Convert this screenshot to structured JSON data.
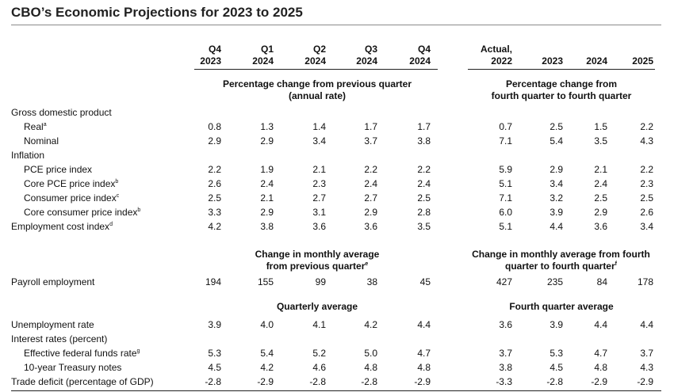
{
  "title": "CBO’s Economic Projections for 2023 to 2025",
  "columns": [
    {
      "line1": "Q4",
      "line2": "2023"
    },
    {
      "line1": "Q1",
      "line2": "2024"
    },
    {
      "line1": "Q2",
      "line2": "2024"
    },
    {
      "line1": "Q3",
      "line2": "2024"
    },
    {
      "line1": "Q4",
      "line2": "2024"
    },
    {
      "line1": "Actual,",
      "line2": "2022"
    },
    {
      "line1": "",
      "line2": "2023"
    },
    {
      "line1": "",
      "line2": "2024"
    },
    {
      "line1": "",
      "line2": "2025"
    }
  ],
  "sections": {
    "quarterly_pct_l1": "Percentage change from previous quarter",
    "quarterly_pct_l2": "(annual rate)",
    "annual_pct_l1": "Percentage change from",
    "annual_pct_l2": "fourth quarter to fourth quarter",
    "quarterly_avg_change_l1": "Change in monthly average",
    "quarterly_avg_change_l2": "from previous quarter",
    "quarterly_avg_change_note": "e",
    "annual_avg_change_l1": "Change in monthly average from fourth",
    "annual_avg_change_l2": "quarter to fourth quarter",
    "annual_avg_change_note": "f",
    "quarterly_average": "Quarterly average",
    "fourth_quarter_average": "Fourth quarter average"
  },
  "rows": {
    "gdp": {
      "label": "Gross domestic product"
    },
    "real": {
      "label": "Real",
      "note": "a",
      "values": [
        "0.8",
        "1.3",
        "1.4",
        "1.7",
        "1.7",
        "0.7",
        "2.5",
        "1.5",
        "2.2"
      ]
    },
    "nominal": {
      "label": "Nominal",
      "values": [
        "2.9",
        "2.9",
        "3.4",
        "3.7",
        "3.8",
        "7.1",
        "5.4",
        "3.5",
        "4.3"
      ]
    },
    "inflation": {
      "label": "Inflation"
    },
    "pce": {
      "label": "PCE price index",
      "values": [
        "2.2",
        "1.9",
        "2.1",
        "2.2",
        "2.2",
        "5.9",
        "2.9",
        "2.1",
        "2.2"
      ]
    },
    "core_pce": {
      "label": "Core PCE price index",
      "note": "b",
      "values": [
        "2.6",
        "2.4",
        "2.3",
        "2.4",
        "2.4",
        "5.1",
        "3.4",
        "2.4",
        "2.3"
      ]
    },
    "cpi": {
      "label": "Consumer price index",
      "note": "c",
      "values": [
        "2.5",
        "2.1",
        "2.7",
        "2.7",
        "2.5",
        "7.1",
        "3.2",
        "2.5",
        "2.5"
      ]
    },
    "core_cpi": {
      "label": "Core consumer price index",
      "note": "b",
      "values": [
        "3.3",
        "2.9",
        "3.1",
        "2.9",
        "2.8",
        "6.0",
        "3.9",
        "2.9",
        "2.6"
      ]
    },
    "eci": {
      "label": "Employment cost index",
      "note": "d",
      "values": [
        "4.2",
        "3.8",
        "3.6",
        "3.6",
        "3.5",
        "5.1",
        "4.4",
        "3.6",
        "3.4"
      ]
    },
    "payroll": {
      "label": "Payroll employment",
      "values": [
        "194",
        "155",
        "99",
        "38",
        "45",
        "427",
        "235",
        "84",
        "178"
      ]
    },
    "unemployment": {
      "label": "Unemployment rate",
      "values": [
        "3.9",
        "4.0",
        "4.1",
        "4.2",
        "4.4",
        "3.6",
        "3.9",
        "4.4",
        "4.4"
      ]
    },
    "interest": {
      "label": "Interest rates (percent)"
    },
    "fed_funds": {
      "label": "Effective federal funds rate",
      "note": "g",
      "values": [
        "5.3",
        "5.4",
        "5.2",
        "5.0",
        "4.7",
        "3.7",
        "5.3",
        "4.7",
        "3.7"
      ]
    },
    "treasury": {
      "label": "10-year Treasury notes",
      "values": [
        "4.5",
        "4.2",
        "4.6",
        "4.8",
        "4.8",
        "3.8",
        "4.5",
        "4.8",
        "4.3"
      ]
    },
    "trade_deficit": {
      "label": "Trade deficit (percentage of GDP)",
      "values": [
        "-2.8",
        "-2.9",
        "-2.8",
        "-2.8",
        "-2.9",
        "-3.3",
        "-2.8",
        "-2.9",
        "-2.9"
      ]
    }
  }
}
